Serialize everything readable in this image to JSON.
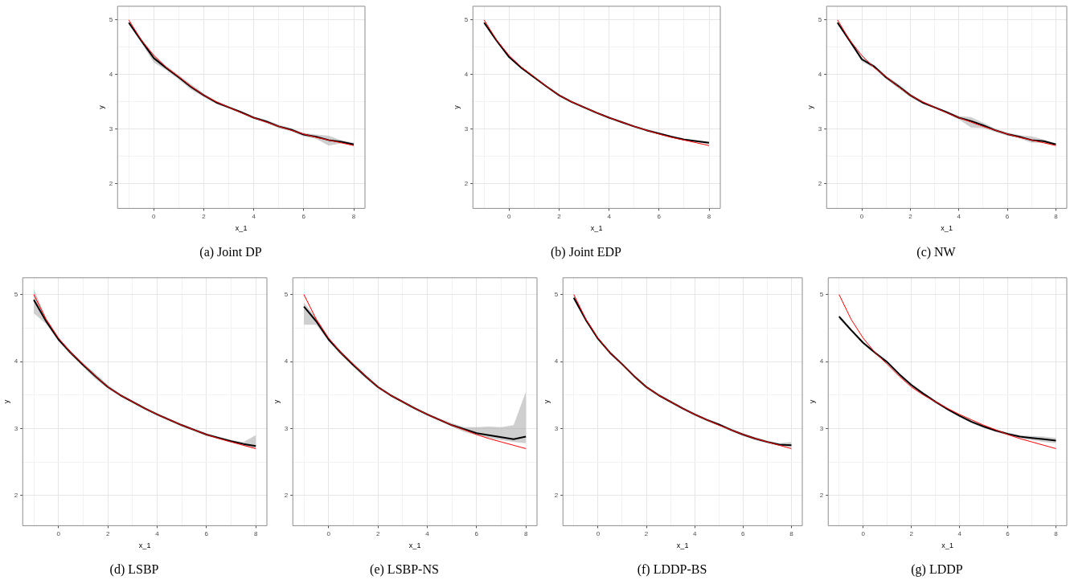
{
  "chart_data": [
    {
      "type": "line",
      "title": "(a) Joint DP",
      "xlabel": "x_1",
      "ylabel": "y",
      "xlim": [
        -1.45,
        8.45
      ],
      "ylim": [
        1.55,
        5.25
      ],
      "xticks": [
        {
          "value": -1,
          "label": null
        },
        0,
        {
          "value": 1,
          "label": null
        },
        2,
        {
          "value": 3,
          "label": null
        },
        4,
        {
          "value": 5,
          "label": null
        },
        6,
        {
          "value": 7,
          "label": null
        },
        8
      ],
      "yticks": [
        2,
        {
          "value": 2.5,
          "label": null
        },
        3,
        {
          "value": 3.5,
          "label": null
        },
        4,
        {
          "value": 4.5,
          "label": null
        },
        5
      ],
      "grid": true,
      "legend": false,
      "x": [
        -1,
        -0.5,
        0,
        0.5,
        1,
        1.5,
        2,
        2.5,
        3,
        3.5,
        4,
        4.5,
        5,
        5.5,
        6,
        6.5,
        7,
        7.5,
        8
      ],
      "series": [
        {
          "color": "#000000",
          "values": [
            4.95,
            4.62,
            4.3,
            4.12,
            3.95,
            3.77,
            3.62,
            3.49,
            3.4,
            3.31,
            3.21,
            3.14,
            3.05,
            2.99,
            2.9,
            2.86,
            2.8,
            2.77,
            2.72
          ],
          "lower": [
            4.92,
            4.58,
            4.22,
            4.08,
            3.91,
            3.72,
            3.59,
            3.46,
            3.38,
            3.29,
            3.19,
            3.11,
            3.02,
            2.96,
            2.87,
            2.82,
            2.7,
            2.74,
            2.7
          ],
          "upper": [
            4.98,
            4.66,
            4.37,
            4.16,
            3.99,
            3.82,
            3.65,
            3.52,
            3.42,
            3.33,
            3.23,
            3.17,
            3.08,
            3.02,
            2.93,
            2.9,
            2.88,
            2.8,
            2.75
          ]
        },
        {
          "color": "#ff0000",
          "values": [
            5.0,
            4.63,
            4.35,
            4.13,
            3.96,
            3.78,
            3.62,
            3.5,
            3.4,
            3.3,
            3.21,
            3.13,
            3.05,
            2.98,
            2.91,
            2.85,
            2.8,
            2.75,
            2.7
          ]
        }
      ]
    },
    {
      "type": "line",
      "title": "(b) Joint EDP",
      "xlabel": "x_1",
      "ylabel": "y",
      "xlim": [
        -1.45,
        8.45
      ],
      "ylim": [
        1.55,
        5.25
      ],
      "xticks": [
        {
          "value": -1,
          "label": null
        },
        0,
        {
          "value": 1,
          "label": null
        },
        2,
        {
          "value": 3,
          "label": null
        },
        4,
        {
          "value": 5,
          "label": null
        },
        6,
        {
          "value": 7,
          "label": null
        },
        8
      ],
      "yticks": [
        2,
        {
          "value": 2.5,
          "label": null
        },
        3,
        {
          "value": 3.5,
          "label": null
        },
        4,
        {
          "value": 4.5,
          "label": null
        },
        5
      ],
      "grid": true,
      "legend": false,
      "x": [
        -1,
        -0.5,
        0,
        0.5,
        1,
        1.5,
        2,
        2.5,
        3,
        3.5,
        4,
        4.5,
        5,
        5.5,
        6,
        6.5,
        7,
        7.5,
        8
      ],
      "series": [
        {
          "color": "#000000",
          "values": [
            4.95,
            4.62,
            4.32,
            4.12,
            3.95,
            3.78,
            3.62,
            3.5,
            3.4,
            3.3,
            3.21,
            3.13,
            3.05,
            2.98,
            2.92,
            2.86,
            2.81,
            2.78,
            2.75
          ],
          "lower": [
            4.92,
            4.6,
            4.3,
            4.1,
            3.93,
            3.76,
            3.6,
            3.48,
            3.38,
            3.28,
            3.19,
            3.11,
            3.03,
            2.96,
            2.9,
            2.84,
            2.79,
            2.76,
            2.73
          ],
          "upper": [
            4.98,
            4.64,
            4.34,
            4.14,
            3.97,
            3.8,
            3.64,
            3.52,
            3.42,
            3.32,
            3.23,
            3.15,
            3.07,
            3.0,
            2.94,
            2.88,
            2.83,
            2.8,
            2.77
          ]
        },
        {
          "color": "#ff0000",
          "values": [
            5.0,
            4.63,
            4.35,
            4.13,
            3.96,
            3.78,
            3.62,
            3.5,
            3.4,
            3.3,
            3.21,
            3.13,
            3.05,
            2.98,
            2.91,
            2.85,
            2.8,
            2.75,
            2.7
          ]
        }
      ]
    },
    {
      "type": "line",
      "title": "(c) NW",
      "xlabel": "x_1",
      "ylabel": "y",
      "xlim": [
        -1.45,
        8.45
      ],
      "ylim": [
        1.55,
        5.25
      ],
      "xticks": [
        {
          "value": -1,
          "label": null
        },
        0,
        {
          "value": 1,
          "label": null
        },
        2,
        {
          "value": 3,
          "label": null
        },
        4,
        {
          "value": 5,
          "label": null
        },
        6,
        {
          "value": 7,
          "label": null
        },
        8
      ],
      "yticks": [
        2,
        {
          "value": 2.5,
          "label": null
        },
        3,
        {
          "value": 3.5,
          "label": null
        },
        4,
        {
          "value": 4.5,
          "label": null
        },
        5
      ],
      "grid": true,
      "legend": false,
      "x": [
        -1,
        -0.5,
        0,
        0.5,
        1,
        1.5,
        2,
        2.5,
        3,
        3.5,
        4,
        4.5,
        5,
        5.5,
        6,
        6.5,
        7,
        7.5,
        8
      ],
      "series": [
        {
          "color": "#000000",
          "values": [
            4.95,
            4.62,
            4.28,
            4.15,
            3.95,
            3.79,
            3.62,
            3.49,
            3.4,
            3.31,
            3.21,
            3.15,
            3.07,
            2.98,
            2.91,
            2.86,
            2.8,
            2.78,
            2.72
          ],
          "lower": [
            4.92,
            4.59,
            4.24,
            4.12,
            3.92,
            3.75,
            3.59,
            3.46,
            3.38,
            3.29,
            3.18,
            3.03,
            3.02,
            2.95,
            2.88,
            2.83,
            2.75,
            2.75,
            2.7
          ],
          "upper": [
            4.98,
            4.65,
            4.32,
            4.18,
            3.98,
            3.83,
            3.65,
            3.52,
            3.42,
            3.33,
            3.24,
            3.22,
            3.12,
            3.01,
            2.94,
            2.89,
            2.87,
            2.81,
            2.74
          ]
        },
        {
          "color": "#ff0000",
          "values": [
            5.0,
            4.63,
            4.35,
            4.13,
            3.96,
            3.78,
            3.62,
            3.5,
            3.4,
            3.3,
            3.21,
            3.13,
            3.05,
            2.98,
            2.91,
            2.85,
            2.8,
            2.75,
            2.7
          ]
        }
      ]
    },
    {
      "type": "line",
      "title": "(d) LSBP",
      "xlabel": "x_1",
      "ylabel": "y",
      "xlim": [
        -1.45,
        8.45
      ],
      "ylim": [
        1.55,
        5.25
      ],
      "xticks": [
        {
          "value": -1,
          "label": null
        },
        0,
        {
          "value": 1,
          "label": null
        },
        2,
        {
          "value": 3,
          "label": null
        },
        4,
        {
          "value": 5,
          "label": null
        },
        6,
        {
          "value": 7,
          "label": null
        },
        8
      ],
      "yticks": [
        2,
        {
          "value": 2.5,
          "label": null
        },
        3,
        {
          "value": 3.5,
          "label": null
        },
        4,
        {
          "value": 4.5,
          "label": null
        },
        5
      ],
      "grid": true,
      "legend": false,
      "x": [
        -1,
        -0.5,
        0,
        0.5,
        1,
        1.5,
        2,
        2.5,
        3,
        3.5,
        4,
        4.5,
        5,
        5.5,
        6,
        6.5,
        7,
        7.5,
        8
      ],
      "series": [
        {
          "color": "#000000",
          "values": [
            4.92,
            4.6,
            4.33,
            4.13,
            3.95,
            3.78,
            3.62,
            3.5,
            3.4,
            3.3,
            3.21,
            3.13,
            3.05,
            2.98,
            2.91,
            2.86,
            2.81,
            2.77,
            2.74
          ],
          "lower": [
            4.72,
            4.56,
            4.3,
            4.1,
            3.92,
            3.74,
            3.6,
            3.48,
            3.38,
            3.28,
            3.19,
            3.11,
            3.03,
            2.96,
            2.89,
            2.84,
            2.79,
            2.74,
            2.7
          ],
          "upper": [
            5.08,
            4.65,
            4.36,
            4.16,
            3.98,
            3.82,
            3.65,
            3.52,
            3.42,
            3.32,
            3.23,
            3.15,
            3.07,
            3.0,
            2.93,
            2.88,
            2.83,
            2.8,
            2.9
          ]
        },
        {
          "color": "#ff0000",
          "values": [
            5.0,
            4.63,
            4.35,
            4.13,
            3.96,
            3.78,
            3.62,
            3.5,
            3.4,
            3.3,
            3.21,
            3.13,
            3.05,
            2.98,
            2.91,
            2.85,
            2.8,
            2.75,
            2.7
          ]
        }
      ]
    },
    {
      "type": "line",
      "title": "(e) LSBP-NS",
      "xlabel": "x_1",
      "ylabel": "y",
      "xlim": [
        -1.45,
        8.45
      ],
      "ylim": [
        1.55,
        5.25
      ],
      "xticks": [
        {
          "value": -1,
          "label": null
        },
        0,
        {
          "value": 1,
          "label": null
        },
        2,
        {
          "value": 3,
          "label": null
        },
        4,
        {
          "value": 5,
          "label": null
        },
        6,
        {
          "value": 7,
          "label": null
        },
        8
      ],
      "yticks": [
        2,
        {
          "value": 2.5,
          "label": null
        },
        3,
        {
          "value": 3.5,
          "label": null
        },
        4,
        {
          "value": 4.5,
          "label": null
        },
        5
      ],
      "grid": true,
      "legend": false,
      "x": [
        -1,
        -0.5,
        0,
        0.5,
        1,
        1.5,
        2,
        2.5,
        3,
        3.5,
        4,
        4.5,
        5,
        5.5,
        6,
        6.5,
        7,
        7.5,
        8
      ],
      "series": [
        {
          "color": "#000000",
          "values": [
            4.82,
            4.6,
            4.33,
            4.13,
            3.95,
            3.78,
            3.62,
            3.5,
            3.4,
            3.3,
            3.21,
            3.13,
            3.05,
            2.99,
            2.93,
            2.9,
            2.87,
            2.84,
            2.88
          ],
          "lower": [
            4.55,
            4.55,
            4.3,
            4.1,
            3.92,
            3.75,
            3.6,
            3.48,
            3.38,
            3.28,
            3.19,
            3.11,
            3.03,
            2.95,
            2.9,
            2.86,
            2.83,
            2.8,
            2.78
          ],
          "upper": [
            4.88,
            4.65,
            4.36,
            4.16,
            3.98,
            3.81,
            3.64,
            3.52,
            3.42,
            3.32,
            3.23,
            3.15,
            3.08,
            3.02,
            3.02,
            3.03,
            3.02,
            3.05,
            3.55
          ]
        },
        {
          "color": "#ff0000",
          "values": [
            5.0,
            4.63,
            4.35,
            4.13,
            3.96,
            3.78,
            3.62,
            3.5,
            3.4,
            3.3,
            3.21,
            3.13,
            3.05,
            2.98,
            2.91,
            2.85,
            2.8,
            2.75,
            2.7
          ]
        }
      ]
    },
    {
      "type": "line",
      "title": "(f) LDDP-BS",
      "xlabel": "x_1",
      "ylabel": "y",
      "xlim": [
        -1.45,
        8.45
      ],
      "ylim": [
        1.55,
        5.25
      ],
      "xticks": [
        {
          "value": -1,
          "label": null
        },
        0,
        {
          "value": 1,
          "label": null
        },
        2,
        {
          "value": 3,
          "label": null
        },
        4,
        {
          "value": 5,
          "label": null
        },
        6,
        {
          "value": 7,
          "label": null
        },
        8
      ],
      "yticks": [
        2,
        {
          "value": 2.5,
          "label": null
        },
        3,
        {
          "value": 3.5,
          "label": null
        },
        4,
        {
          "value": 4.5,
          "label": null
        },
        5
      ],
      "grid": true,
      "legend": false,
      "x": [
        -1,
        -0.5,
        0,
        0.5,
        1,
        1.5,
        2,
        2.5,
        3,
        3.5,
        4,
        4.5,
        5,
        5.5,
        6,
        6.5,
        7,
        7.5,
        8
      ],
      "series": [
        {
          "color": "#000000",
          "values": [
            4.95,
            4.62,
            4.34,
            4.13,
            3.96,
            3.78,
            3.62,
            3.5,
            3.4,
            3.3,
            3.21,
            3.13,
            3.06,
            2.98,
            2.91,
            2.85,
            2.8,
            2.76,
            2.75
          ],
          "lower": [
            4.92,
            4.6,
            4.32,
            4.11,
            3.94,
            3.76,
            3.6,
            3.48,
            3.38,
            3.28,
            3.19,
            3.11,
            3.04,
            2.96,
            2.89,
            2.83,
            2.78,
            2.74,
            2.72
          ],
          "upper": [
            4.98,
            4.64,
            4.36,
            4.15,
            3.98,
            3.8,
            3.64,
            3.52,
            3.42,
            3.32,
            3.23,
            3.15,
            3.08,
            3.0,
            2.93,
            2.87,
            2.82,
            2.78,
            2.8
          ]
        },
        {
          "color": "#ff0000",
          "values": [
            5.0,
            4.63,
            4.35,
            4.13,
            3.96,
            3.78,
            3.62,
            3.5,
            3.4,
            3.3,
            3.21,
            3.13,
            3.05,
            2.98,
            2.91,
            2.85,
            2.8,
            2.75,
            2.7
          ]
        }
      ]
    },
    {
      "type": "line",
      "title": "(g) LDDP",
      "xlabel": "x_1",
      "ylabel": "y",
      "xlim": [
        -1.45,
        8.45
      ],
      "ylim": [
        1.55,
        5.25
      ],
      "xticks": [
        {
          "value": -1,
          "label": null
        },
        0,
        {
          "value": 1,
          "label": null
        },
        2,
        {
          "value": 3,
          "label": null
        },
        4,
        {
          "value": 5,
          "label": null
        },
        6,
        {
          "value": 7,
          "label": null
        },
        8
      ],
      "yticks": [
        2,
        {
          "value": 2.5,
          "label": null
        },
        3,
        {
          "value": 3.5,
          "label": null
        },
        4,
        {
          "value": 4.5,
          "label": null
        },
        5
      ],
      "grid": true,
      "legend": false,
      "x": [
        -1,
        -0.5,
        0,
        0.5,
        1,
        1.5,
        2,
        2.5,
        3,
        3.5,
        4,
        4.5,
        5,
        5.5,
        6,
        6.5,
        7,
        7.5,
        8
      ],
      "series": [
        {
          "color": "#000000",
          "values": [
            4.67,
            4.47,
            4.28,
            4.13,
            3.99,
            3.81,
            3.65,
            3.52,
            3.4,
            3.29,
            3.19,
            3.1,
            3.03,
            2.97,
            2.92,
            2.88,
            2.86,
            2.84,
            2.82
          ],
          "lower": [
            4.64,
            4.45,
            4.26,
            4.11,
            3.97,
            3.79,
            3.63,
            3.5,
            3.38,
            3.27,
            3.17,
            3.08,
            3.01,
            2.95,
            2.9,
            2.86,
            2.83,
            2.8,
            2.78
          ],
          "upper": [
            4.7,
            4.49,
            4.3,
            4.15,
            4.01,
            3.83,
            3.67,
            3.54,
            3.42,
            3.31,
            3.21,
            3.12,
            3.05,
            2.99,
            2.94,
            2.9,
            2.89,
            2.88,
            2.86
          ]
        },
        {
          "color": "#ff0000",
          "values": [
            5.0,
            4.63,
            4.35,
            4.13,
            3.96,
            3.78,
            3.62,
            3.5,
            3.4,
            3.3,
            3.21,
            3.13,
            3.05,
            2.98,
            2.91,
            2.85,
            2.8,
            2.75,
            2.7
          ]
        }
      ]
    }
  ]
}
